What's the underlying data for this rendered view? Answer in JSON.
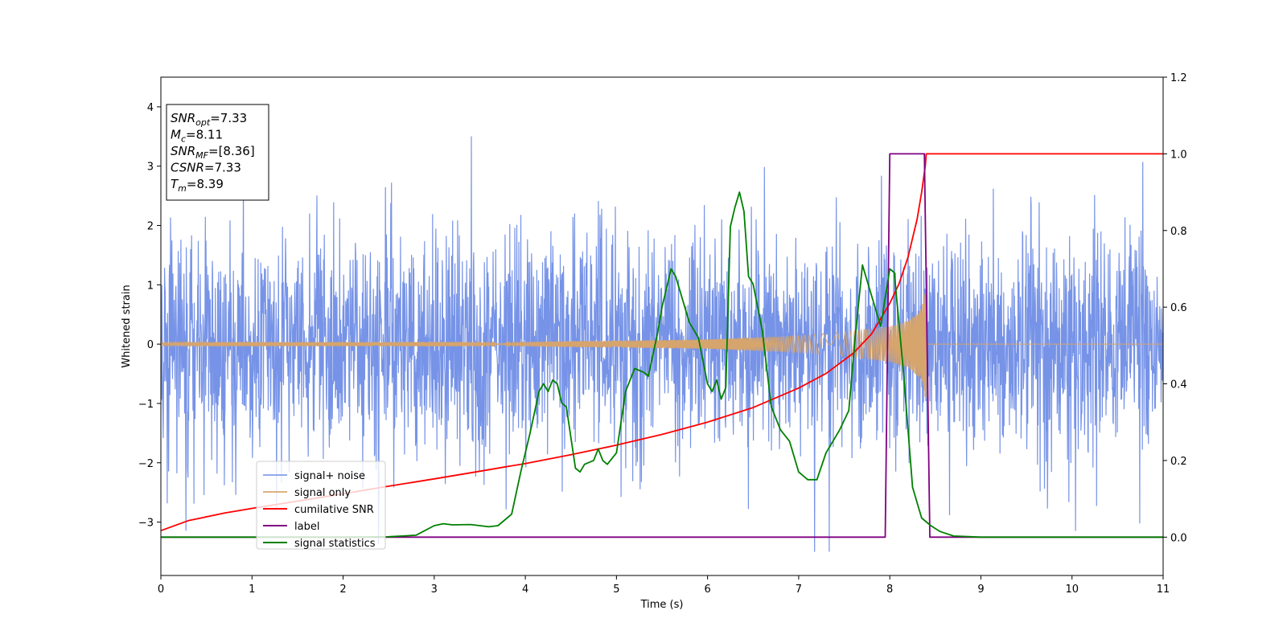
{
  "chart_data": {
    "type": "line",
    "title": "",
    "xlabel": "Time (s)",
    "ylabel": "Whitened strain",
    "xlim": [
      0,
      11
    ],
    "ylim_left": [
      -3.9,
      4.5
    ],
    "ylim_right": [
      -0.1,
      1.2
    ],
    "x_ticks": [
      "0",
      "1",
      "2",
      "3",
      "4",
      "5",
      "6",
      "7",
      "8",
      "9",
      "10",
      "11"
    ],
    "y_ticks_left": [
      "−3",
      "−2",
      "−1",
      "0",
      "1",
      "2",
      "3",
      "4"
    ],
    "y_ticks_right": [
      "0.0",
      "0.2",
      "0.4",
      "0.6",
      "0.8",
      "1.0",
      "1.2"
    ],
    "grid": false,
    "legend_position": "lower-left",
    "info_box": {
      "lines": [
        {
          "sym": "SNR",
          "sub": "opt",
          "val": "=7.33"
        },
        {
          "sym": "M",
          "sub": "c",
          "val": "=8.11"
        },
        {
          "sym": "SNR",
          "sub": "MF",
          "val": "=[8.36]"
        },
        {
          "sym": "CSNR",
          "sub": "",
          "val": "=7.33"
        },
        {
          "sym": "T",
          "sub": "m",
          "val": "=8.39"
        }
      ]
    },
    "series": [
      {
        "name": "signal+ noise",
        "axis": "left",
        "color": "#6f8de6",
        "kind": "noise",
        "sigma": 0.9,
        "range": [
          -3.5,
          4.2
        ]
      },
      {
        "name": "signal only",
        "axis": "left",
        "color": "#d6a46d",
        "kind": "chirp",
        "t_start": 0,
        "t_merge": 8.4,
        "amplitude_at_x": [
          [
            0,
            0.03
          ],
          [
            4,
            0.04
          ],
          [
            6,
            0.08
          ],
          [
            7,
            0.14
          ],
          [
            7.6,
            0.22
          ],
          [
            8,
            0.3
          ],
          [
            8.2,
            0.4
          ],
          [
            8.35,
            0.6
          ],
          [
            8.4,
            1.0
          ]
        ]
      },
      {
        "name": "cumilative SNR",
        "axis": "right",
        "color": "#ff0000",
        "x": [
          0,
          0.3,
          0.7,
          1,
          1.5,
          2,
          2.5,
          3,
          3.5,
          4,
          4.5,
          5,
          5.5,
          6,
          6.5,
          7,
          7.3,
          7.6,
          7.8,
          8,
          8.1,
          8.2,
          8.3,
          8.35,
          8.39,
          8.4,
          9,
          10,
          11
        ],
        "y": [
          0.017,
          0.043,
          0.063,
          0.075,
          0.094,
          0.113,
          0.133,
          0.152,
          0.172,
          0.192,
          0.215,
          0.24,
          0.268,
          0.3,
          0.338,
          0.389,
          0.427,
          0.48,
          0.53,
          0.61,
          0.66,
          0.73,
          0.83,
          0.9,
          0.97,
          1.0,
          1.0,
          1.0,
          1.0
        ]
      },
      {
        "name": "label",
        "axis": "right",
        "color": "#800080",
        "x": [
          0,
          7.95,
          8.0,
          8.38,
          8.44,
          11
        ],
        "y": [
          0,
          0,
          1,
          1,
          0,
          0
        ]
      },
      {
        "name": "signal statistics",
        "axis": "right",
        "color": "#008000",
        "x": [
          0,
          0.5,
          1,
          1.5,
          2,
          2.5,
          2.8,
          3.0,
          3.1,
          3.2,
          3.4,
          3.6,
          3.7,
          3.85,
          3.95,
          4.05,
          4.15,
          4.2,
          4.25,
          4.3,
          4.35,
          4.4,
          4.45,
          4.55,
          4.6,
          4.65,
          4.75,
          4.8,
          4.85,
          4.9,
          5.0,
          5.1,
          5.2,
          5.3,
          5.35,
          5.45,
          5.5,
          5.6,
          5.65,
          5.7,
          5.8,
          5.9,
          6.0,
          6.05,
          6.1,
          6.15,
          6.2,
          6.25,
          6.3,
          6.35,
          6.4,
          6.45,
          6.5,
          6.6,
          6.7,
          6.8,
          6.9,
          7.0,
          7.1,
          7.2,
          7.3,
          7.45,
          7.55,
          7.62,
          7.7,
          7.8,
          7.9,
          8.0,
          8.05,
          8.15,
          8.25,
          8.35,
          8.45,
          8.55,
          8.7,
          9,
          10,
          11
        ],
        "y": [
          0,
          0,
          0,
          0,
          0,
          0.001,
          0.005,
          0.03,
          0.035,
          0.032,
          0.033,
          0.027,
          0.03,
          0.06,
          0.17,
          0.27,
          0.38,
          0.4,
          0.38,
          0.41,
          0.4,
          0.35,
          0.34,
          0.18,
          0.17,
          0.19,
          0.2,
          0.23,
          0.2,
          0.19,
          0.22,
          0.38,
          0.44,
          0.43,
          0.42,
          0.53,
          0.6,
          0.7,
          0.68,
          0.64,
          0.56,
          0.52,
          0.4,
          0.38,
          0.41,
          0.36,
          0.39,
          0.81,
          0.86,
          0.9,
          0.85,
          0.68,
          0.66,
          0.54,
          0.34,
          0.28,
          0.25,
          0.17,
          0.15,
          0.15,
          0.22,
          0.28,
          0.33,
          0.52,
          0.71,
          0.63,
          0.55,
          0.7,
          0.69,
          0.43,
          0.13,
          0.05,
          0.03,
          0.015,
          0.003,
          0,
          0,
          0
        ]
      }
    ]
  }
}
